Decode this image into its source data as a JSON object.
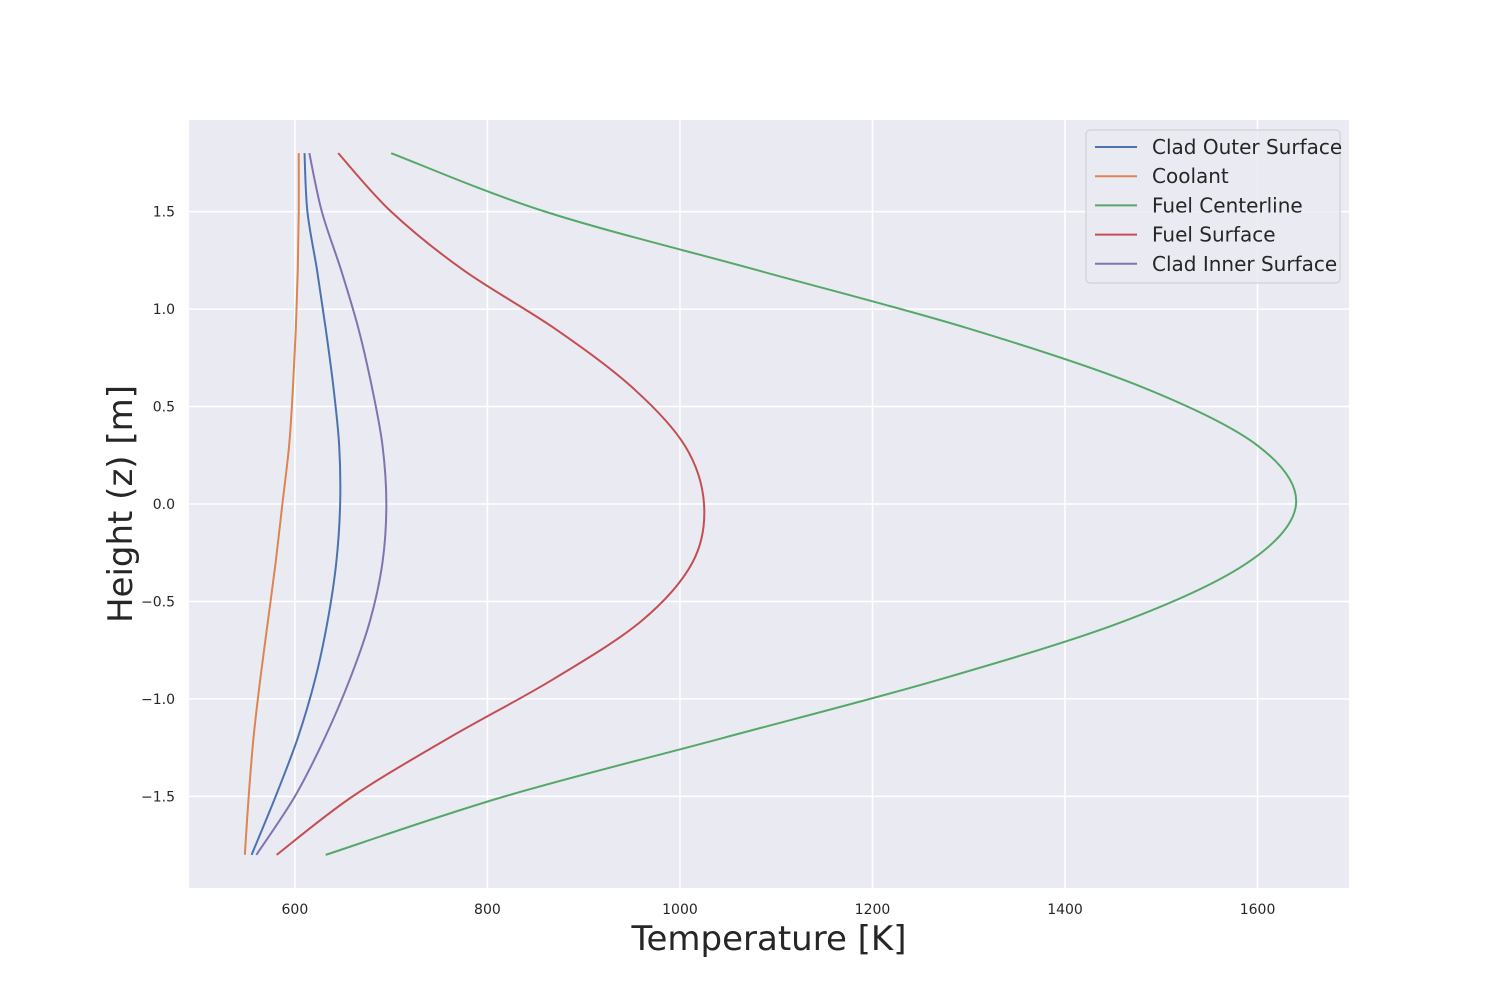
{
  "chart_data": {
    "type": "line",
    "title": "",
    "xlabel": "Temperature [K]",
    "ylabel": "Height (z) [m]",
    "xlim": [
      490,
      1695
    ],
    "ylim": [
      -1.97,
      1.97
    ],
    "xticks": [
      600,
      800,
      1000,
      1200,
      1400,
      1600
    ],
    "yticks": [
      -1.5,
      -1.0,
      -0.5,
      0.0,
      0.5,
      1.0,
      1.5
    ],
    "grid": true,
    "legend_position": "top-right",
    "z": [
      -1.8,
      -1.5,
      -1.2,
      -0.9,
      -0.6,
      -0.3,
      0.0,
      0.3,
      0.6,
      0.9,
      1.2,
      1.5,
      1.8
    ],
    "series": [
      {
        "name": "Clad Outer Surface",
        "color": "#4c72b0",
        "values": [
          555,
          580,
          603,
          621,
          634,
          643,
          647,
          646,
          640,
          632,
          623,
          613,
          610
        ]
      },
      {
        "name": "Coolant",
        "color": "#dd8452",
        "values": [
          548,
          552,
          557,
          564,
          572,
          580,
          587,
          594,
          598,
          601,
          603,
          604,
          604
        ]
      },
      {
        "name": "Fuel Centerline",
        "color": "#55a868",
        "values": [
          632,
          818,
          1045,
          1270,
          1462,
          1590,
          1640,
          1600,
          1480,
          1300,
          1080,
          860,
          700
        ]
      },
      {
        "name": "Fuel Surface",
        "color": "#c44e52",
        "values": [
          581,
          660,
          760,
          868,
          960,
          1013,
          1025,
          1005,
          950,
          870,
          775,
          700,
          645
        ]
      },
      {
        "name": "Clad Inner Surface",
        "color": "#8172b3",
        "values": [
          560,
          600,
          631,
          657,
          678,
          691,
          695,
          691,
          680,
          666,
          648,
          628,
          615
        ]
      }
    ]
  }
}
